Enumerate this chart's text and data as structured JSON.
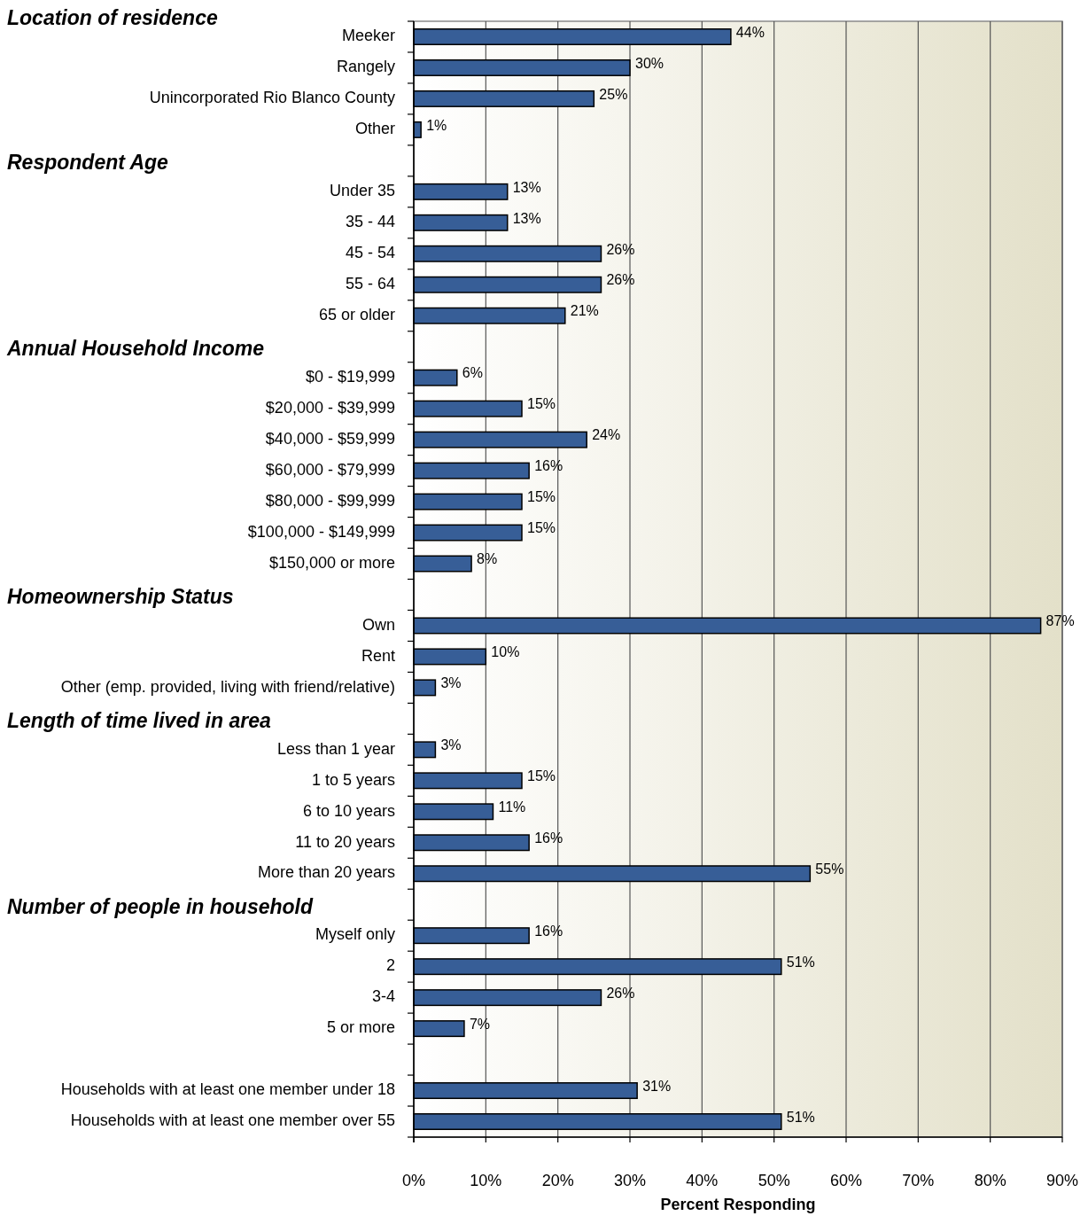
{
  "chart_data": {
    "type": "bar",
    "orientation": "horizontal",
    "categories": [
      "Meeker",
      "Rangely",
      "Unincorporated Rio Blanco County",
      "Other",
      null,
      "Under 35",
      "35 - 44",
      "45 - 54",
      "55 - 64",
      "65 or older",
      null,
      "$0 - $19,999",
      "$20,000 - $39,999",
      "$40,000 - $59,999",
      "$60,000 - $79,999",
      "$80,000 - $99,999",
      "$100,000 - $149,999",
      "$150,000 or more",
      null,
      "Own",
      "Rent",
      "Other (emp. provided, living with friend/relative)",
      null,
      "Less than 1 year",
      "1 to 5 years",
      "6 to 10 years",
      "11 to 20 years",
      "More than 20 years",
      null,
      "Myself only",
      "2",
      "3-4",
      "5 or more",
      null,
      "Households with at least one member under 18",
      "Households with at least one member over 55"
    ],
    "values": [
      44,
      30,
      25,
      1,
      null,
      13,
      13,
      26,
      26,
      21,
      null,
      6,
      15,
      24,
      16,
      15,
      15,
      8,
      null,
      87,
      10,
      3,
      null,
      3,
      15,
      11,
      16,
      55,
      null,
      16,
      51,
      26,
      7,
      null,
      31,
      51
    ],
    "value_labels": [
      "44%",
      "30%",
      "25%",
      "1%",
      null,
      "13%",
      "13%",
      "26%",
      "26%",
      "21%",
      null,
      "6%",
      "15%",
      "24%",
      "16%",
      "15%",
      "15%",
      "8%",
      null,
      "87%",
      "10%",
      "3%",
      null,
      "3%",
      "15%",
      "11%",
      "16%",
      "55%",
      null,
      "16%",
      "51%",
      "26%",
      "7%",
      null,
      "31%",
      "51%"
    ],
    "color": "#375e97",
    "xlabel": "Percent Responding",
    "xlim": [
      0,
      90
    ],
    "xticks": [
      {
        "value": 0,
        "label": "0%"
      },
      {
        "value": 10,
        "label": "10%"
      },
      {
        "value": 20,
        "label": "20%"
      },
      {
        "value": 30,
        "label": "30%"
      },
      {
        "value": 40,
        "label": "40%"
      },
      {
        "value": 50,
        "label": "50%"
      },
      {
        "value": 60,
        "label": "60%"
      },
      {
        "value": 70,
        "label": "70%"
      },
      {
        "value": 80,
        "label": "80%"
      },
      {
        "value": 90,
        "label": "90%"
      }
    ],
    "grid": "x",
    "annotations": [
      "Location of residence",
      "Respondent Age",
      "Annual Household Income",
      "Homeownership Status",
      "Length of time lived in area",
      "Number of people in household"
    ]
  }
}
